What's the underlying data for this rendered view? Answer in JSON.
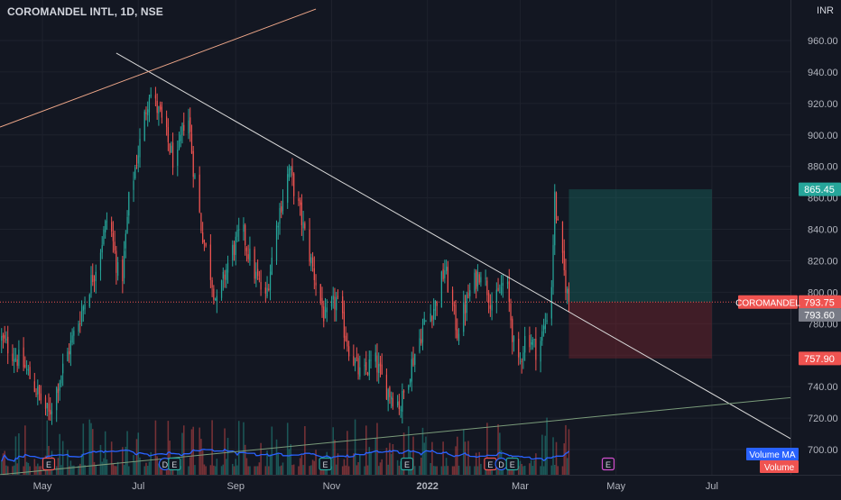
{
  "chart_data": {
    "type": "candlestick",
    "title": "COROMANDEL INTL, 1D, NSE",
    "currency": "INR",
    "y_axis": {
      "ticks": [
        700,
        720,
        740,
        760,
        780,
        800,
        820,
        840,
        860,
        880,
        900,
        920,
        940,
        960
      ],
      "tick_labels": [
        "700.00",
        "720.00",
        "740.00",
        "760.00",
        "780.00",
        "800.00",
        "820.00",
        "840.00",
        "860.00",
        "880.00",
        "900.00",
        "920.00",
        "940.00",
        "960.00"
      ],
      "ylim": [
        690,
        980
      ]
    },
    "x_axis": {
      "tick_labels": [
        "May",
        "Jul",
        "Sep",
        "Nov",
        "2022",
        "Mar",
        "May",
        "Jul"
      ],
      "tick_dates": [
        "2021-05-01",
        "2021-07-01",
        "2021-09-01",
        "2021-11-01",
        "2022-01-01",
        "2022-03-01",
        "2022-05-01",
        "2022-07-01"
      ],
      "xlim": [
        "2021-04-04",
        "2022-08-20"
      ]
    },
    "price_path": [
      {
        "date": "2021-04-05",
        "close": 770
      },
      {
        "date": "2021-04-20",
        "close": 752
      },
      {
        "date": "2021-05-05",
        "close": 722
      },
      {
        "date": "2021-05-15",
        "close": 755
      },
      {
        "date": "2021-05-25",
        "close": 785
      },
      {
        "date": "2021-06-05",
        "close": 820
      },
      {
        "date": "2021-06-12",
        "close": 850
      },
      {
        "date": "2021-06-20",
        "close": 800
      },
      {
        "date": "2021-06-25",
        "close": 858
      },
      {
        "date": "2021-07-03",
        "close": 900
      },
      {
        "date": "2021-07-08",
        "close": 928
      },
      {
        "date": "2021-07-15",
        "close": 912
      },
      {
        "date": "2021-07-25",
        "close": 878
      },
      {
        "date": "2021-08-01",
        "close": 920
      },
      {
        "date": "2021-08-05",
        "close": 880
      },
      {
        "date": "2021-08-10",
        "close": 842
      },
      {
        "date": "2021-08-20",
        "close": 792
      },
      {
        "date": "2021-08-28",
        "close": 822
      },
      {
        "date": "2021-09-05",
        "close": 840
      },
      {
        "date": "2021-09-12",
        "close": 815
      },
      {
        "date": "2021-09-20",
        "close": 795
      },
      {
        "date": "2021-09-28",
        "close": 848
      },
      {
        "date": "2021-10-05",
        "close": 878
      },
      {
        "date": "2021-10-12",
        "close": 850
      },
      {
        "date": "2021-10-20",
        "close": 815
      },
      {
        "date": "2021-10-28",
        "close": 782
      },
      {
        "date": "2021-11-04",
        "close": 795
      },
      {
        "date": "2021-11-12",
        "close": 765
      },
      {
        "date": "2021-11-20",
        "close": 745
      },
      {
        "date": "2021-11-28",
        "close": 758
      },
      {
        "date": "2021-12-05",
        "close": 740
      },
      {
        "date": "2021-12-15",
        "close": 728
      },
      {
        "date": "2021-12-22",
        "close": 755
      },
      {
        "date": "2021-12-30",
        "close": 780
      },
      {
        "date": "2022-01-06",
        "close": 792
      },
      {
        "date": "2022-01-12",
        "close": 815
      },
      {
        "date": "2022-01-20",
        "close": 775
      },
      {
        "date": "2022-01-28",
        "close": 800
      },
      {
        "date": "2022-02-04",
        "close": 815
      },
      {
        "date": "2022-02-12",
        "close": 790
      },
      {
        "date": "2022-02-20",
        "close": 810
      },
      {
        "date": "2022-02-27",
        "close": 748
      },
      {
        "date": "2022-03-05",
        "close": 775
      },
      {
        "date": "2022-03-12",
        "close": 762
      },
      {
        "date": "2022-03-17",
        "close": 780
      },
      {
        "date": "2022-03-21",
        "close": 805
      },
      {
        "date": "2022-03-23",
        "close": 860
      },
      {
        "date": "2022-03-25",
        "close": 840
      },
      {
        "date": "2022-03-30",
        "close": 805
      },
      {
        "date": "2022-04-01",
        "close": 793.75
      }
    ],
    "trendlines": [
      {
        "color": "#d9d9d9",
        "from": {
          "date": "2021-06-17",
          "price": 952
        },
        "to": {
          "date": "2022-08-20",
          "price": 707
        }
      },
      {
        "color": "#f0a88a",
        "from": {
          "date": "2021-04-04",
          "price": 905
        },
        "to": {
          "date": "2021-10-22",
          "price": 980
        }
      },
      {
        "color": "#7a9b7a",
        "from": {
          "date": "2021-04-04",
          "price": 684
        },
        "to": {
          "date": "2022-08-20",
          "price": 733
        }
      }
    ],
    "position_tool": {
      "entry": 793.75,
      "target": 865.45,
      "stop": 757.9,
      "start_date": "2022-04-01",
      "end_date": "2022-07-01",
      "target_color": "rgba(22,120,110,0.35)",
      "stop_color": "rgba(150,40,50,0.35)"
    },
    "price_labels": [
      {
        "text": "865.45",
        "value": 865.45,
        "color": "#26a69a"
      },
      {
        "text": "793.75",
        "value": 793.75,
        "color": "#ef5350",
        "tag": "COROMANDEL"
      },
      {
        "text": "793.60",
        "value": 793.6,
        "color": "#787b86"
      },
      {
        "text": "757.90",
        "value": 757.9,
        "color": "#ef5350"
      }
    ],
    "events": [
      {
        "letter": "E",
        "date": "2021-05-05",
        "color": "#ef5350"
      },
      {
        "letter": "D",
        "date": "2021-07-18",
        "color": "#2962ff"
      },
      {
        "letter": "E",
        "date": "2021-07-24",
        "color": "#26a69a"
      },
      {
        "letter": "E",
        "date": "2021-10-28",
        "color": "#26a69a"
      },
      {
        "letter": "E",
        "date": "2021-12-19",
        "color": "#26a69a"
      },
      {
        "letter": "E",
        "date": "2022-02-10",
        "color": "#ef5350"
      },
      {
        "letter": "D",
        "date": "2022-02-17",
        "color": "#2962ff"
      },
      {
        "letter": "E",
        "date": "2022-02-24",
        "color": "#26a69a"
      },
      {
        "letter": "E",
        "date": "2022-04-26",
        "color": "#d34fcf"
      }
    ],
    "volume_legend": [
      {
        "label": "Volume MA",
        "color": "#2962ff"
      },
      {
        "label": "Volume",
        "color": "#ef5350"
      }
    ],
    "colors": {
      "background": "#131722",
      "up": "#26a69a",
      "down": "#ef5350",
      "grid": "#1e222d",
      "axis_text": "#b2b5be",
      "volume_ma": "#2962ff"
    }
  }
}
